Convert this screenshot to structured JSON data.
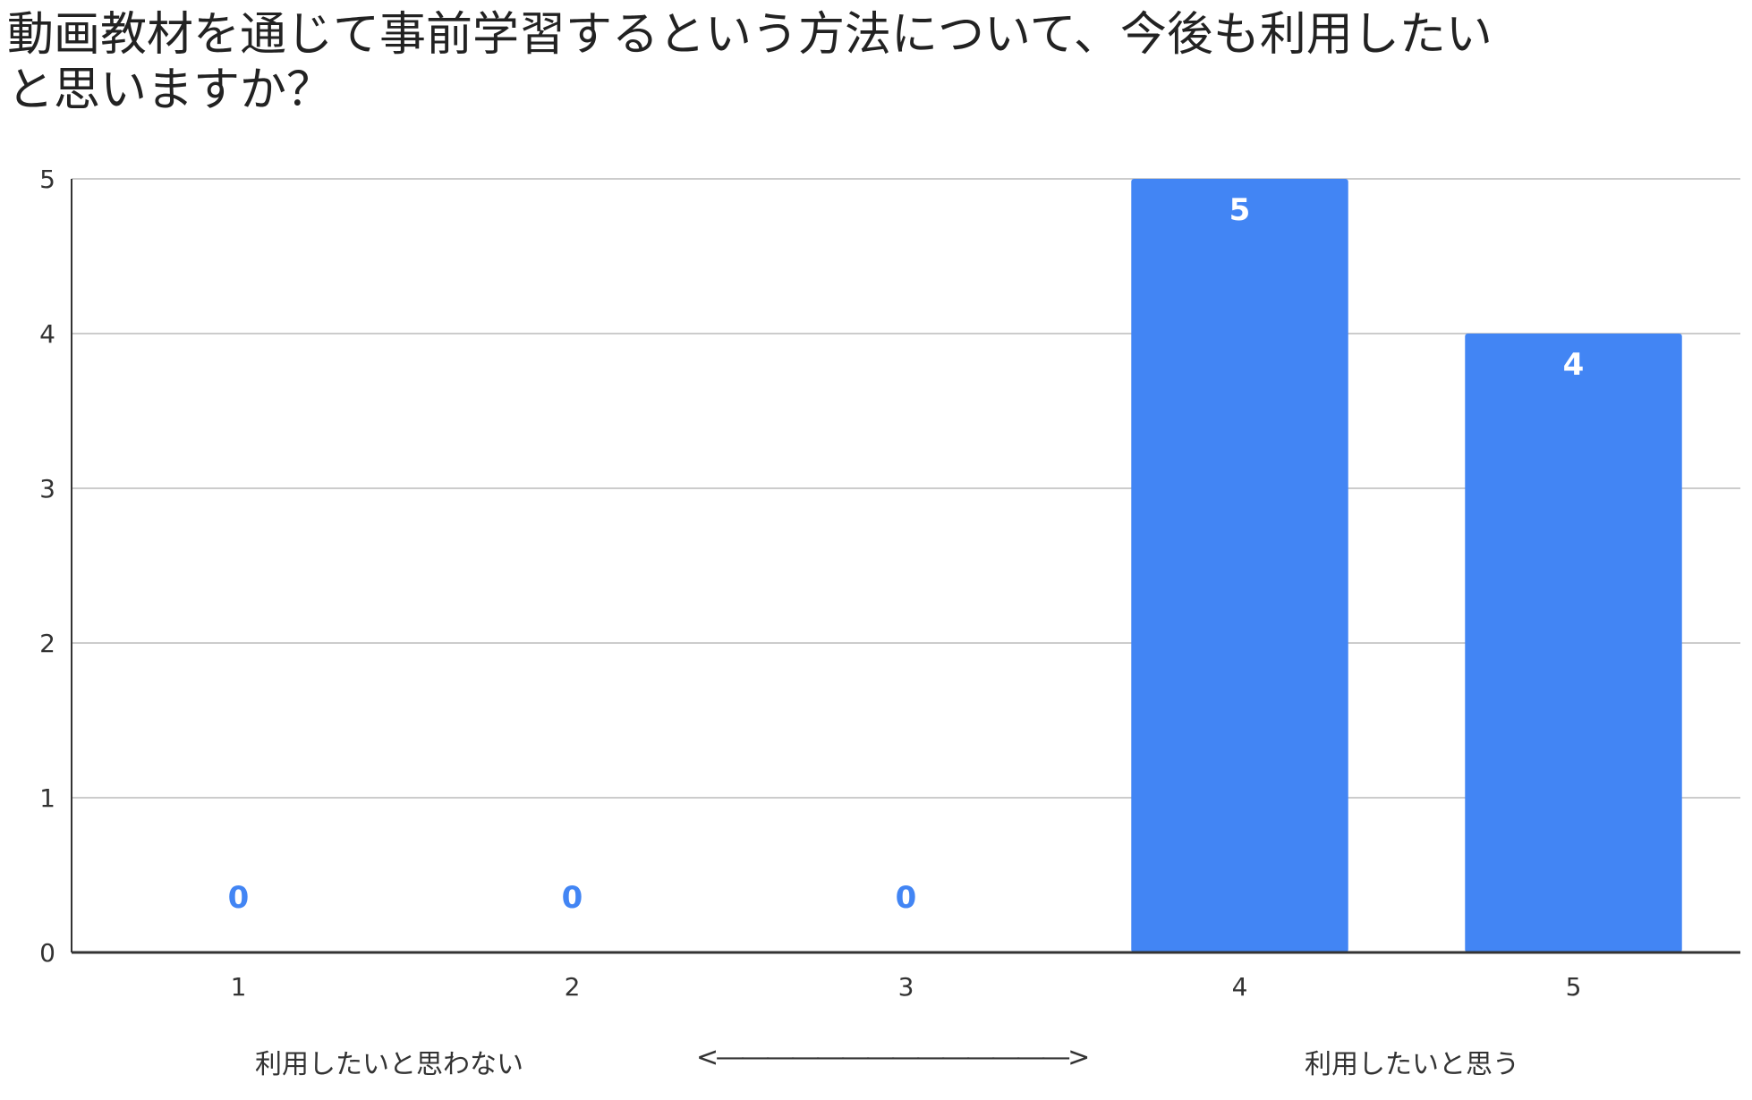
{
  "chart_data": {
    "type": "bar",
    "title_lines": [
      "動画教材を通じて事前学習するという方法について、今後も利用したい",
      "と思いますか？"
    ],
    "categories": [
      "1",
      "2",
      "3",
      "4",
      "5"
    ],
    "values": [
      0,
      0,
      0,
      5,
      4
    ],
    "ylim": [
      0,
      5
    ],
    "yticks": [
      0,
      1,
      2,
      3,
      4,
      5
    ],
    "grid": true,
    "data_labels": true,
    "bar_color": "#4285F4",
    "label_color_inside": "#ffffff",
    "label_color_zero": "#4285F4",
    "scale_captions": {
      "left": "利用したいと思わない",
      "middle": "<――――――――――――――>",
      "right": "利用したいと思う"
    }
  }
}
